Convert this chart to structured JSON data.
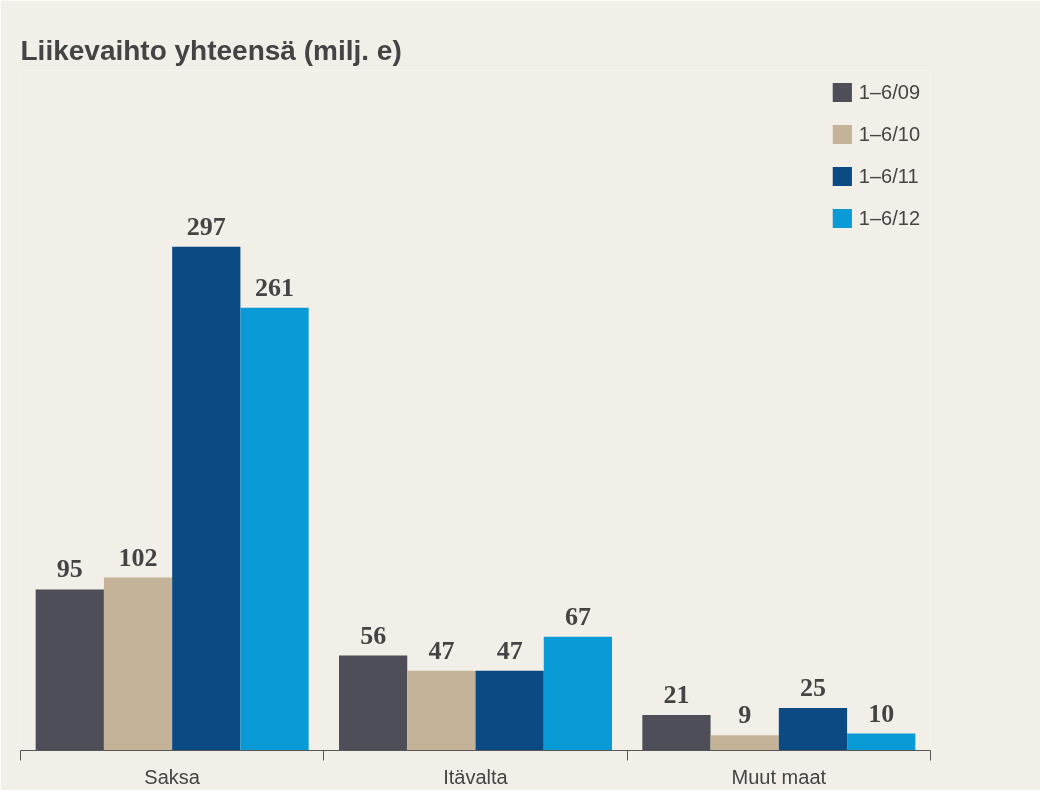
{
  "chart_data": {
    "type": "bar",
    "title": "Liikevaihto yhteensä (milj. e)",
    "categories": [
      "Saksa",
      "Itävalta",
      "Muut maat"
    ],
    "series": [
      {
        "name": "1–6/09",
        "color": "#4d4e57",
        "values": [
          95,
          56,
          21
        ]
      },
      {
        "name": "1–6/10",
        "color": "#c4b399",
        "values": [
          102,
          47,
          9
        ]
      },
      {
        "name": "1–6/11",
        "color": "#0b4a82",
        "values": [
          297,
          47,
          25
        ]
      },
      {
        "name": "1–6/12",
        "color": "#0a9bd6",
        "values": [
          261,
          67,
          10
        ]
      }
    ],
    "data_labels": true,
    "legend": "top right",
    "grid": false
  }
}
